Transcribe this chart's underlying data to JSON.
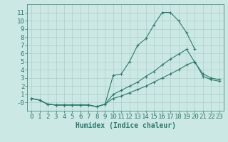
{
  "x_values": [
    0,
    1,
    2,
    3,
    4,
    5,
    6,
    7,
    8,
    9,
    10,
    11,
    12,
    13,
    14,
    15,
    16,
    17,
    18,
    19,
    20,
    21,
    22,
    23
  ],
  "line1": [
    0.5,
    0.3,
    -0.2,
    -0.3,
    -0.3,
    -0.3,
    -0.3,
    -0.3,
    -0.5,
    -0.2,
    3.3,
    3.5,
    5.0,
    7.0,
    7.8,
    9.5,
    11.0,
    11.0,
    10.0,
    8.5,
    6.5,
    null,
    null,
    null
  ],
  "line2": [
    0.5,
    0.3,
    -0.2,
    -0.3,
    -0.3,
    -0.3,
    -0.3,
    -0.3,
    -0.5,
    -0.2,
    1.0,
    1.5,
    2.0,
    2.5,
    3.2,
    3.8,
    4.6,
    5.3,
    5.9,
    6.5,
    4.9,
    3.5,
    3.0,
    2.8
  ],
  "line3": [
    0.5,
    0.3,
    -0.2,
    -0.3,
    -0.3,
    -0.3,
    -0.3,
    -0.3,
    -0.5,
    -0.2,
    0.5,
    0.8,
    1.2,
    1.6,
    2.0,
    2.5,
    3.0,
    3.5,
    4.0,
    4.6,
    5.0,
    3.2,
    2.8,
    2.6
  ],
  "line_color": "#2b7a6e",
  "bg_color": "#cce8e4",
  "grid_color": "#aacfcb",
  "xlabel": "Humidex (Indice chaleur)",
  "ylim": [
    -1,
    12
  ],
  "xlim": [
    -0.5,
    23.5
  ],
  "yticks": [
    0,
    1,
    2,
    3,
    4,
    5,
    6,
    7,
    8,
    9,
    10,
    11
  ],
  "ytick_labels": [
    "-0",
    "1",
    "2",
    "3",
    "4",
    "5",
    "6",
    "7",
    "8",
    "9",
    "10",
    "11"
  ],
  "xticks": [
    0,
    1,
    2,
    3,
    4,
    5,
    6,
    7,
    8,
    9,
    10,
    11,
    12,
    13,
    14,
    15,
    16,
    17,
    18,
    19,
    20,
    21,
    22,
    23
  ],
  "xlabel_fontsize": 7,
  "tick_fontsize": 6.5,
  "title_fontsize": 8
}
